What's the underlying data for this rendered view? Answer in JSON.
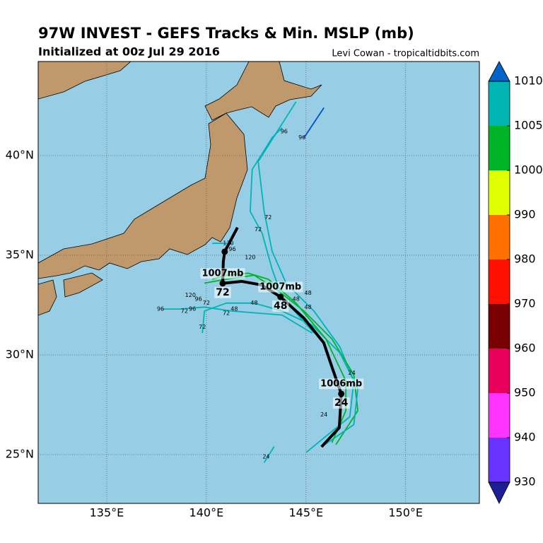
{
  "title": "97W INVEST - GEFS Tracks & Min. MSLP (mb)",
  "subtitle": "Initialized at 00z Jul 29 2016",
  "credit": "Levi Cowan - tropicaltidbits.com",
  "map": {
    "lonlim": [
      131.56,
      153.7
    ],
    "latlim": [
      22.55,
      44.72
    ],
    "lonticks": [
      {
        "value": 135,
        "label": "135°E"
      },
      {
        "value": 140,
        "label": "140°E"
      },
      {
        "value": 145,
        "label": "145°E"
      },
      {
        "value": 150,
        "label": "150°E"
      }
    ],
    "latticks": [
      {
        "value": 25,
        "label": "25°N"
      },
      {
        "value": 30,
        "label": "30°N"
      },
      {
        "value": 35,
        "label": "35°N"
      },
      {
        "value": 40,
        "label": "40°N"
      }
    ],
    "grid": true,
    "ocean_color": "#97cee6",
    "land_color": "#bf996b"
  },
  "colorbar": {
    "ticks": [
      930,
      940,
      950,
      960,
      970,
      980,
      990,
      1000,
      1005,
      1010
    ],
    "colors": [
      "#6633ff",
      "#ff33ff",
      "#e8005a",
      "#780000",
      "#ff1000",
      "#ff7000",
      "#e0ff00",
      "#00b428",
      "#00b4b4"
    ],
    "under_color": "#1e1e96",
    "over_color": "#0064c8"
  },
  "tracks": [
    {
      "color": "#00b4b4",
      "lon": [
        145.0,
        147.2,
        147.4,
        146.7,
        145.4,
        144.0,
        143.3,
        142.9,
        142.6,
        144.5
      ],
      "lat": [
        25.1,
        26.9,
        28.7,
        30.4,
        32.2,
        33.6,
        35.2,
        37.2,
        39.7,
        42.7
      ]
    },
    {
      "color": "#00b428",
      "lon": [
        146.5,
        147.6,
        147.4,
        146.3,
        144.9,
        143.5,
        142.4,
        141.0,
        139.9
      ],
      "lat": [
        25.5,
        27.2,
        29.0,
        30.8,
        32.2,
        33.3,
        34.0,
        33.8,
        33.6
      ]
    },
    {
      "color": "#00b4b4",
      "lon": [
        145.8,
        147.4,
        147.6,
        146.7,
        145.3,
        143.8,
        142.4,
        141.0,
        139.9,
        139.8
      ],
      "lat": [
        25.4,
        26.5,
        28.3,
        30.1,
        31.5,
        32.2,
        32.6,
        32.6,
        32.2,
        31.1
      ]
    },
    {
      "color": "#00b4b4",
      "lon": [
        145.3,
        143.8,
        141.3,
        139.9,
        138.7,
        137.8
      ],
      "lat": [
        31.1,
        32.0,
        32.2,
        32.4,
        32.3,
        32.3
      ]
    },
    {
      "color": "#00b428",
      "lon": [
        146.3,
        147.0,
        147.0,
        146.0,
        144.5,
        143.1,
        142.1,
        141.0,
        140.3
      ],
      "lat": [
        25.6,
        27.2,
        28.7,
        30.8,
        32.6,
        33.8,
        34.1,
        34.0,
        33.8
      ]
    },
    {
      "color": "#00b4b4",
      "lon": [
        145.4,
        143.8,
        143.3,
        142.8,
        142.2,
        142.3,
        143.3,
        143.8
      ],
      "lat": [
        31.1,
        32.9,
        34.3,
        36.1,
        37.2,
        39.3,
        40.9,
        41.4
      ]
    },
    {
      "color": "#0050c8",
      "lon": [
        144.9,
        145.9
      ],
      "lat": [
        40.9,
        42.4
      ]
    },
    {
      "color": "#00b4b4",
      "lon": [
        142.9,
        143.4
      ],
      "lat": [
        24.6,
        25.4
      ]
    },
    {
      "color": "#00b4b4",
      "lon": [
        140.3,
        141.3
      ],
      "lat": [
        35.6,
        35.6
      ]
    }
  ],
  "track_labels": [
    {
      "text": "96",
      "lon": 143.9,
      "lat": 41.2
    },
    {
      "text": "96",
      "lon": 144.8,
      "lat": 40.9
    },
    {
      "text": "72",
      "lon": 143.1,
      "lat": 36.9
    },
    {
      "text": "72",
      "lon": 142.6,
      "lat": 36.3
    },
    {
      "text": "120",
      "lon": 142.2,
      "lat": 34.9
    },
    {
      "text": "120",
      "lon": 141.1,
      "lat": 35.6
    },
    {
      "text": "96",
      "lon": 141.3,
      "lat": 35.3
    },
    {
      "text": "120",
      "lon": 139.2,
      "lat": 33.0
    },
    {
      "text": "96",
      "lon": 139.6,
      "lat": 32.8
    },
    {
      "text": "72",
      "lon": 140.0,
      "lat": 32.6
    },
    {
      "text": "96",
      "lon": 137.7,
      "lat": 32.3
    },
    {
      "text": "72",
      "lon": 138.9,
      "lat": 32.2
    },
    {
      "text": "96",
      "lon": 139.3,
      "lat": 32.3
    },
    {
      "text": "72",
      "lon": 139.8,
      "lat": 31.4
    },
    {
      "text": "72",
      "lon": 141.0,
      "lat": 32.1
    },
    {
      "text": "48",
      "lon": 141.4,
      "lat": 32.3
    },
    {
      "text": "48",
      "lon": 142.4,
      "lat": 32.6
    },
    {
      "text": "48",
      "lon": 145.1,
      "lat": 33.1
    },
    {
      "text": "48",
      "lon": 144.5,
      "lat": 32.8
    },
    {
      "text": "48",
      "lon": 145.1,
      "lat": 32.4
    },
    {
      "text": "24",
      "lon": 147.3,
      "lat": 29.1
    },
    {
      "text": "24",
      "lon": 145.9,
      "lat": 27.0
    },
    {
      "text": "24",
      "lon": 143.0,
      "lat": 24.9
    }
  ],
  "mean_track": {
    "color": "#000000",
    "lon": [
      145.78,
      146.67,
      146.77,
      146.31,
      145.89,
      144.89,
      143.72,
      142.77,
      141.77,
      140.82,
      140.85,
      140.92,
      141.56
    ],
    "lat": [
      25.39,
      26.35,
      28.05,
      29.37,
      30.61,
      31.85,
      32.91,
      33.51,
      33.69,
      33.59,
      34.68,
      35.18,
      36.39
    ]
  },
  "mean_points": [
    {
      "lon": 146.77,
      "lat": 28.05,
      "pressure": "1006mb",
      "hour": "24"
    },
    {
      "lon": 143.72,
      "lat": 32.91,
      "pressure": "1007mb",
      "hour": "48"
    },
    {
      "lon": 140.82,
      "lat": 33.59,
      "pressure": "1007mb",
      "hour": "72"
    },
    {
      "lon": 140.92,
      "lat": 35.18
    }
  ]
}
